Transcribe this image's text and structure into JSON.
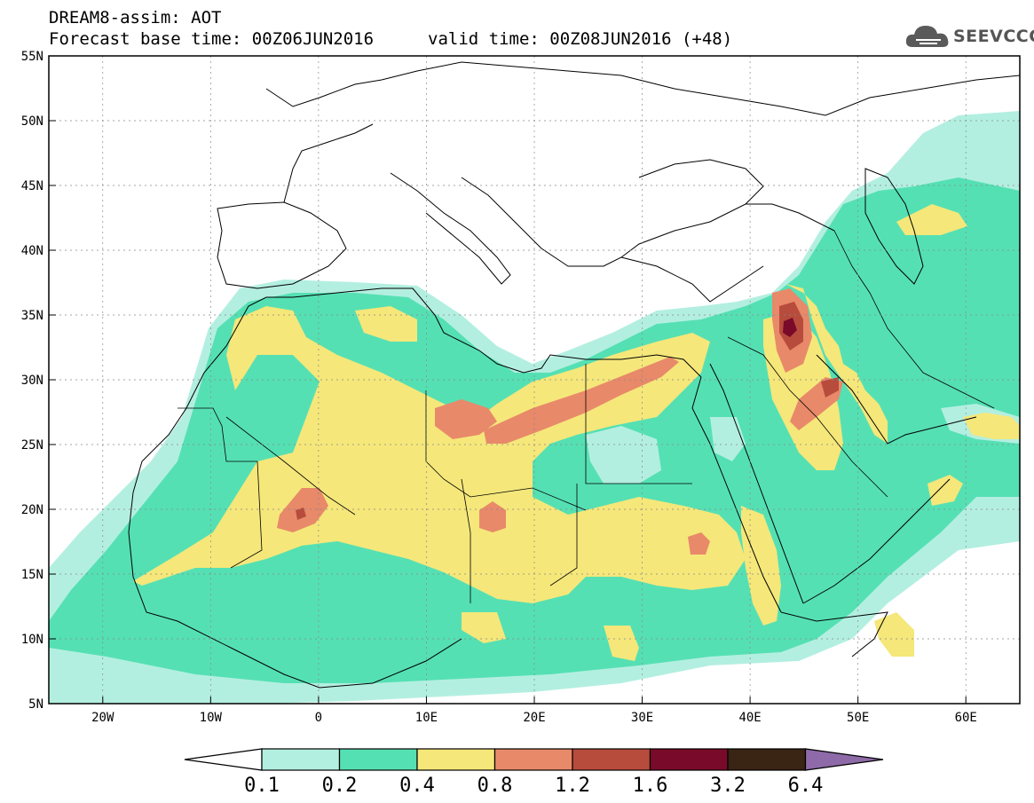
{
  "header": {
    "title": "DREAM8-assim: AOT",
    "base_time": "Forecast base time: 00Z06JUN2016",
    "valid_time": "valid time: 00Z08JUN2016 (+48)"
  },
  "logo": {
    "text": "SEEVCCC",
    "icon": "cloud-icon"
  },
  "map": {
    "lon_range": [
      -25,
      65
    ],
    "lat_range": [
      5,
      55
    ],
    "lat_ticks": [
      {
        "value": 55,
        "label": "55N"
      },
      {
        "value": 50,
        "label": "50N"
      },
      {
        "value": 45,
        "label": "45N"
      },
      {
        "value": 40,
        "label": "40N"
      },
      {
        "value": 35,
        "label": "35N"
      },
      {
        "value": 30,
        "label": "30N"
      },
      {
        "value": 25,
        "label": "25N"
      },
      {
        "value": 20,
        "label": "20N"
      },
      {
        "value": 15,
        "label": "15N"
      },
      {
        "value": 10,
        "label": "10N"
      },
      {
        "value": 5,
        "label": "5N"
      }
    ],
    "lon_ticks": [
      {
        "value": -20,
        "label": "20W"
      },
      {
        "value": -10,
        "label": "10W"
      },
      {
        "value": 0,
        "label": "0"
      },
      {
        "value": 10,
        "label": "10E"
      },
      {
        "value": 20,
        "label": "20E"
      },
      {
        "value": 30,
        "label": "30E"
      },
      {
        "value": 40,
        "label": "40E"
      },
      {
        "value": 50,
        "label": "50E"
      },
      {
        "value": 60,
        "label": "60E"
      }
    ],
    "grid": "dotted",
    "land_color": "#ffffff",
    "border_color": "#000000"
  },
  "colorbar": {
    "orientation": "horizontal",
    "boundaries": [
      "0.1",
      "0.2",
      "0.4",
      "0.8",
      "1.2",
      "1.6",
      "3.2",
      "6.4"
    ],
    "under_color": "#ffffff",
    "over_color": "#8e6aa8",
    "colors": [
      "#b3efe0",
      "#55e0b3",
      "#f5e77a",
      "#e8896a",
      "#b84c3c",
      "#7a0a2a",
      "#3a2414"
    ]
  }
}
